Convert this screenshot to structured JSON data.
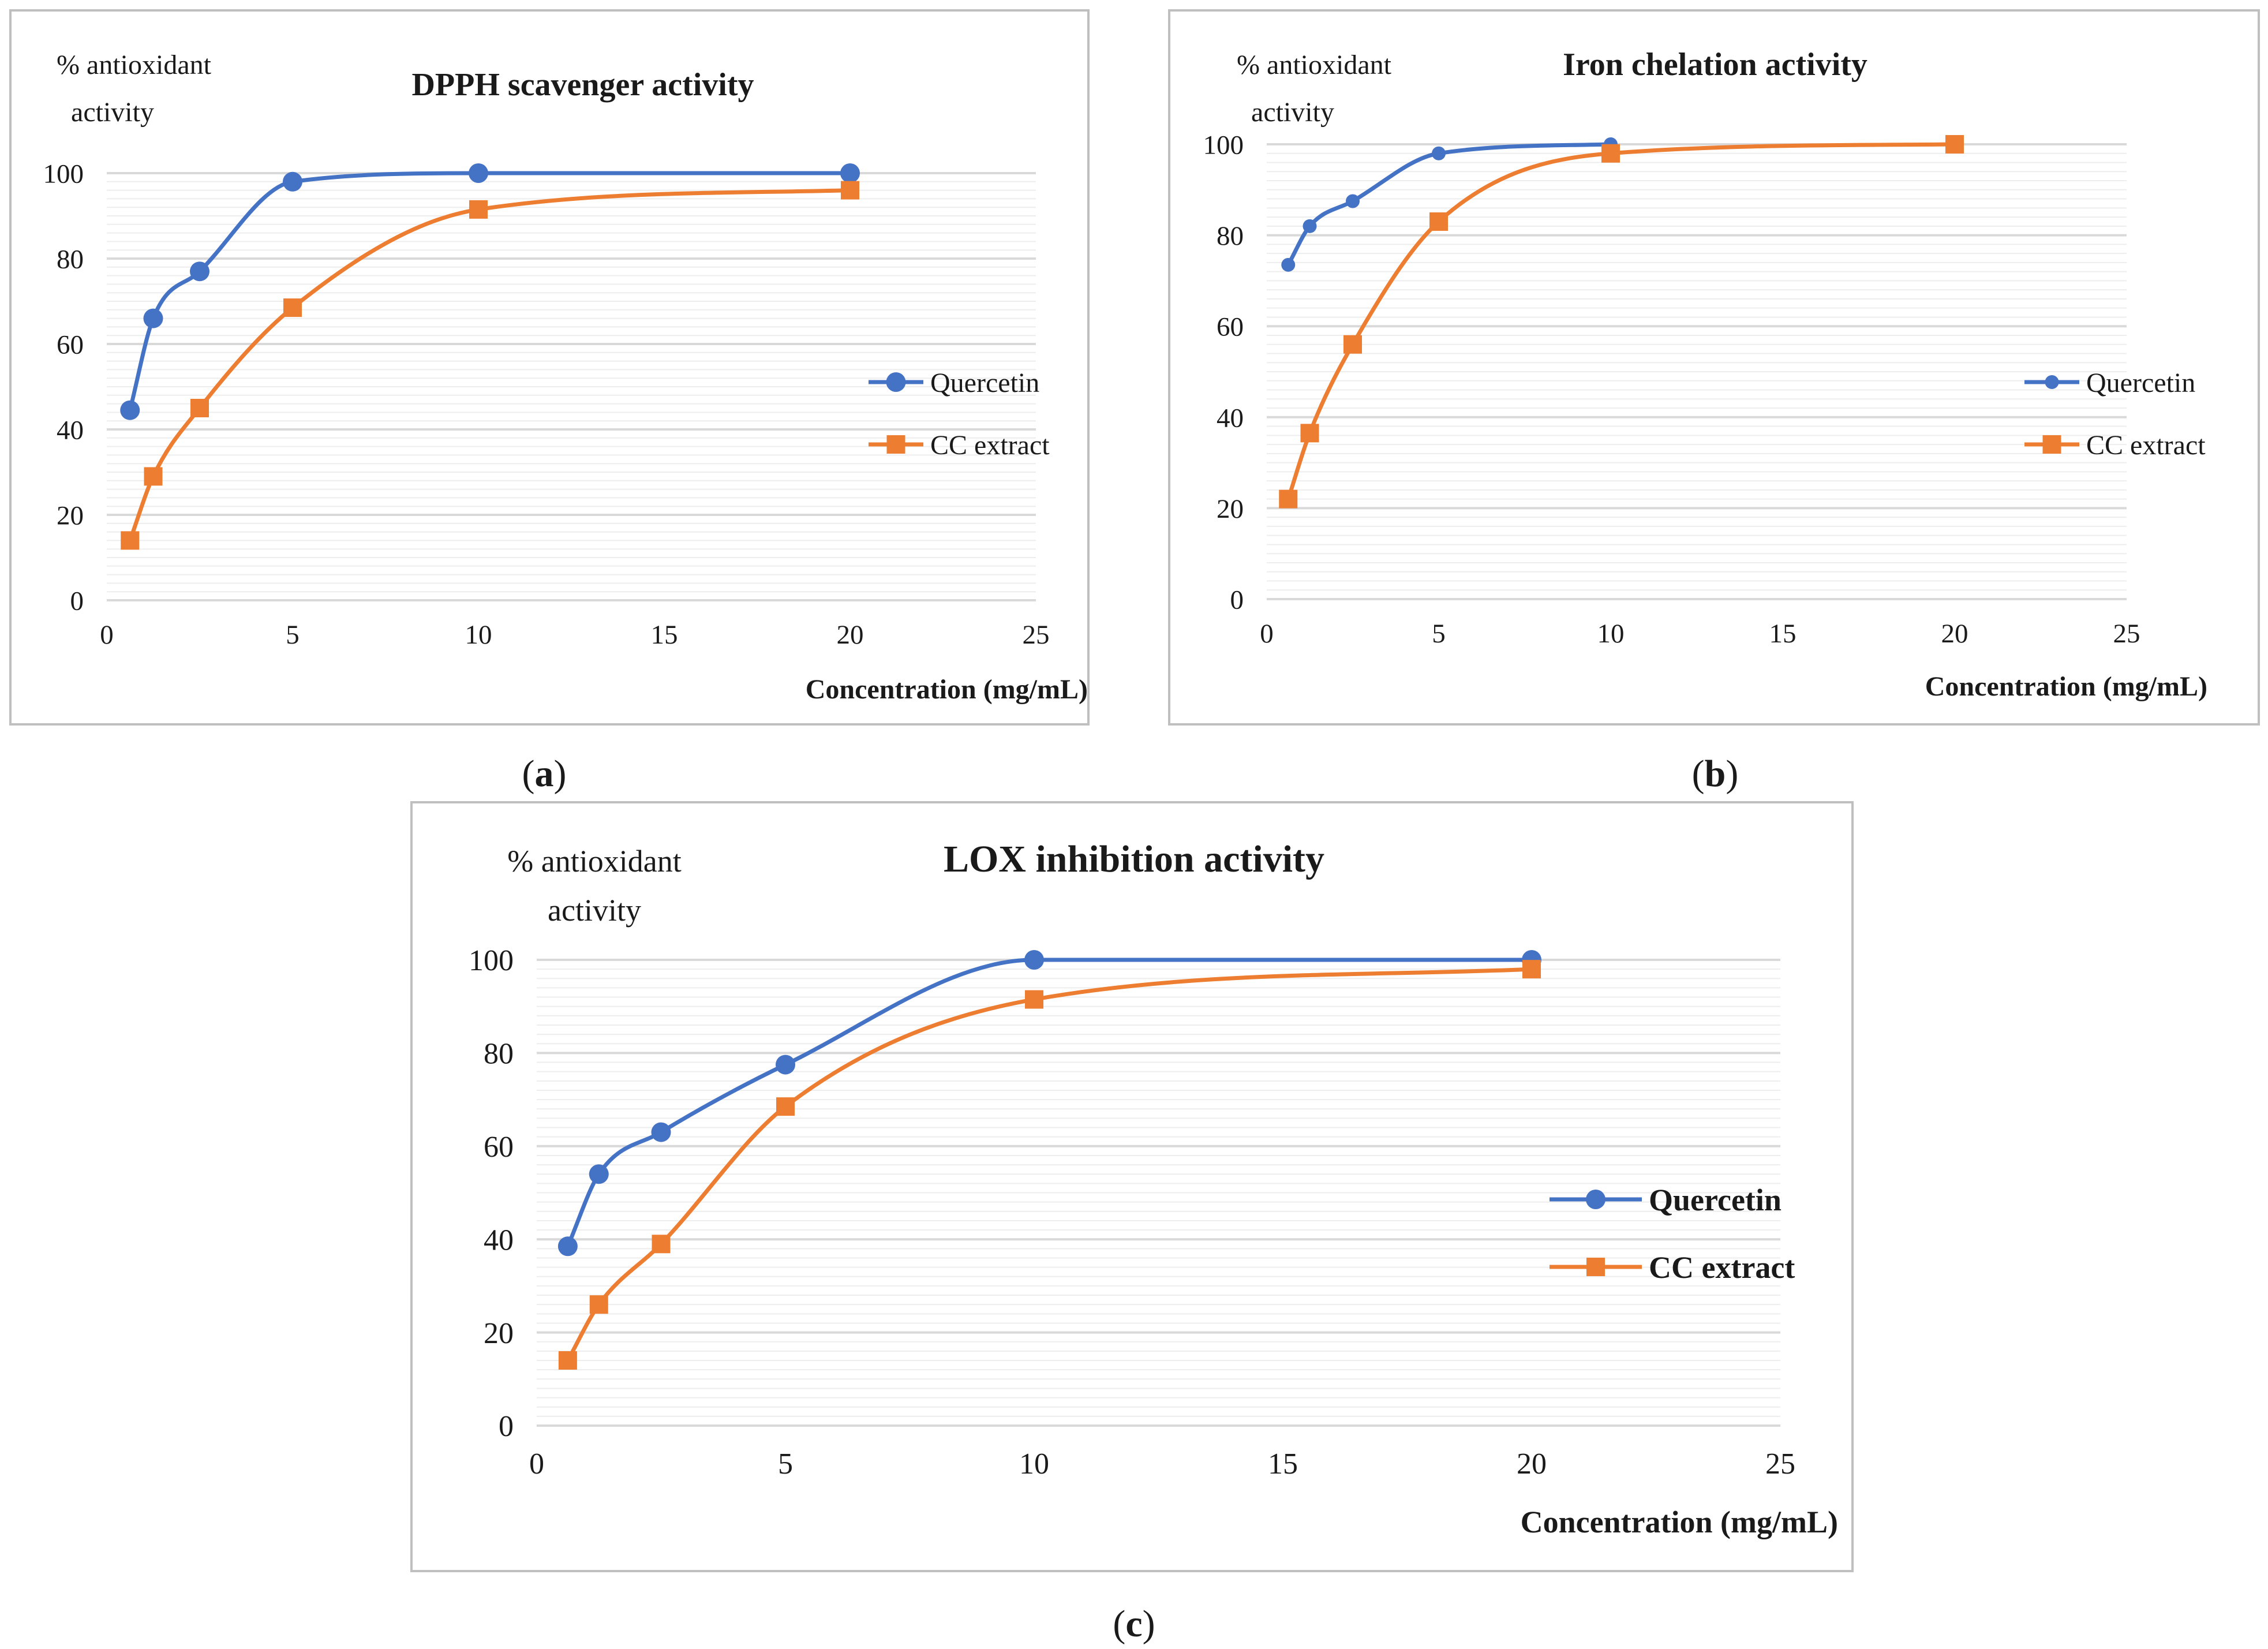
{
  "colors": {
    "quercetin": "#4472C4",
    "cc_extract": "#ED7D31",
    "grid_major": "#D9D9D9",
    "grid_minor": "#EDEDED",
    "frame": "#BFBFBF",
    "text": "#1a1a1a"
  },
  "chart_data": [
    {
      "type": "line",
      "panel_label": "(a)",
      "panel_letter": "a",
      "title": "DPPH scavenger activity",
      "ylabel": "% antioxidant\nactivity",
      "xlabel": "Concentration (mg/mL)",
      "xlim": [
        0,
        25
      ],
      "ylim": [
        0,
        100
      ],
      "xticks": [
        0,
        5,
        10,
        15,
        20,
        25
      ],
      "yticks": [
        0,
        20,
        40,
        60,
        80,
        100
      ],
      "series": [
        {
          "name": "Quercetin",
          "marker": "circle",
          "x": [
            0.625,
            1.25,
            2.5,
            5,
            10,
            20
          ],
          "y": [
            44.5,
            66,
            77,
            98,
            100,
            100
          ]
        },
        {
          "name": "CC extract",
          "marker": "square",
          "x": [
            0.625,
            1.25,
            2.5,
            5,
            10,
            20
          ],
          "y": [
            14,
            29,
            45,
            68.5,
            91.5,
            96
          ]
        }
      ]
    },
    {
      "type": "line",
      "panel_label": "(b)",
      "panel_letter": "b",
      "title": "Iron chelation activity",
      "ylabel": "% antioxidant\nactivity",
      "xlabel": "Concentration (mg/mL)",
      "xlim": [
        0,
        25
      ],
      "ylim": [
        0,
        100
      ],
      "xticks": [
        0,
        5,
        10,
        15,
        20,
        25
      ],
      "yticks": [
        0,
        20,
        40,
        60,
        80,
        100
      ],
      "series": [
        {
          "name": "Quercetin",
          "marker": "circle",
          "x": [
            0.625,
            1.25,
            2.5,
            5,
            10
          ],
          "y": [
            73.5,
            82,
            87.5,
            98,
            100
          ]
        },
        {
          "name": "CC extract",
          "marker": "square",
          "x": [
            0.625,
            1.25,
            2.5,
            5,
            10,
            20
          ],
          "y": [
            22,
            36.5,
            56,
            83,
            98,
            100
          ]
        }
      ]
    },
    {
      "type": "line",
      "panel_label": "(c)",
      "panel_letter": "c",
      "title": "LOX inhibition  activity",
      "ylabel": "% antioxidant\nactivity",
      "xlabel": "Concentration (mg/mL)",
      "xlim": [
        0,
        25
      ],
      "ylim": [
        0,
        100
      ],
      "xticks": [
        0,
        5,
        10,
        15,
        20,
        25
      ],
      "yticks": [
        0,
        20,
        40,
        60,
        80,
        100
      ],
      "series": [
        {
          "name": "Quercetin",
          "marker": "circle",
          "x": [
            0.625,
            1.25,
            2.5,
            5,
            10,
            20
          ],
          "y": [
            38.5,
            54,
            63,
            77.5,
            100,
            100
          ]
        },
        {
          "name": "CC extract",
          "marker": "square",
          "x": [
            0.625,
            1.25,
            2.5,
            5,
            10,
            20
          ],
          "y": [
            14,
            26,
            39,
            68.5,
            91.5,
            98
          ]
        }
      ]
    }
  ]
}
